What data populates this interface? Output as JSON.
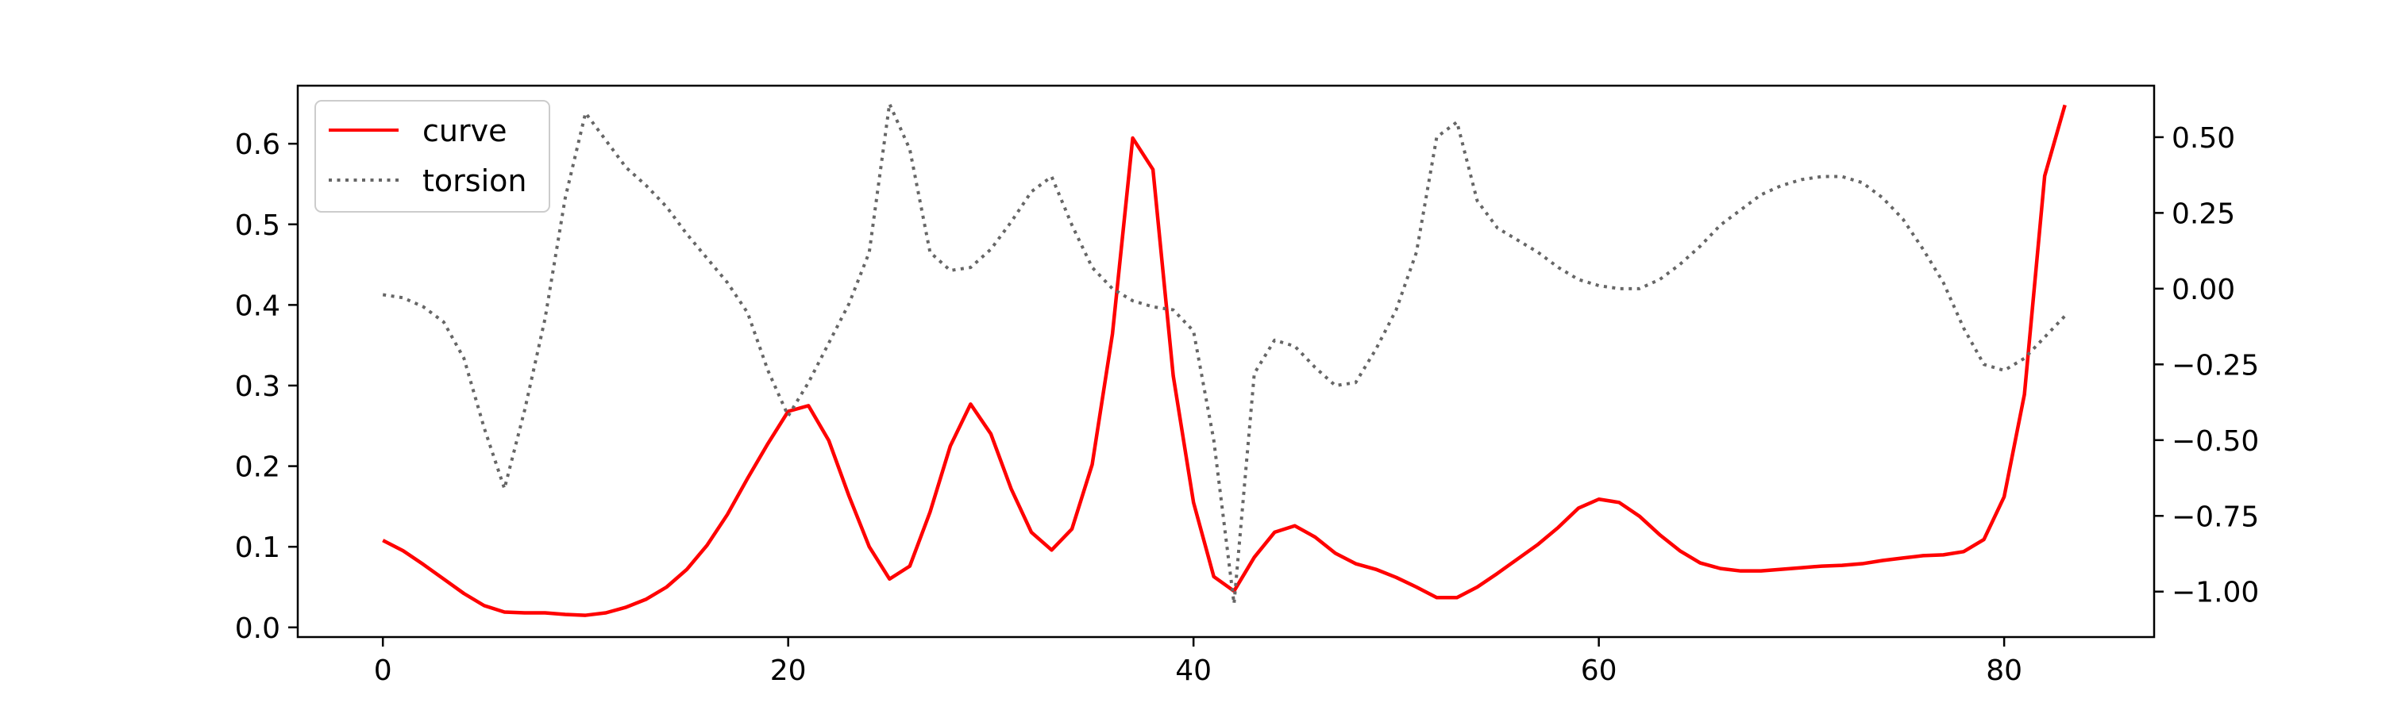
{
  "chart_data": {
    "type": "line",
    "title": "",
    "xlabel": "",
    "ylabel": "",
    "y2label": "",
    "xlim": [
      -4.2,
      87.4
    ],
    "ylim": [
      -0.012,
      0.672
    ],
    "y2lim": [
      -1.15,
      0.67
    ],
    "x_ticks": [
      0,
      20,
      40,
      60,
      80
    ],
    "y_ticks": [
      0.0,
      0.1,
      0.2,
      0.3,
      0.4,
      0.5,
      0.6
    ],
    "y2_ticks": [
      -1.0,
      -0.75,
      -0.5,
      -0.25,
      0.0,
      0.25,
      0.5
    ],
    "grid": false,
    "legend_position": "top-left",
    "x": [
      0,
      1,
      2,
      3,
      4,
      5,
      6,
      7,
      8,
      9,
      10,
      11,
      12,
      13,
      14,
      15,
      16,
      17,
      18,
      19,
      20,
      21,
      22,
      23,
      24,
      25,
      26,
      27,
      28,
      29,
      30,
      31,
      32,
      33,
      34,
      35,
      36,
      37,
      38,
      39,
      40,
      41,
      42,
      43,
      44,
      45,
      46,
      47,
      48,
      49,
      50,
      51,
      52,
      53,
      54,
      55,
      56,
      57,
      58,
      59,
      60,
      61,
      62,
      63,
      64,
      65,
      66,
      67,
      68,
      69,
      70,
      71,
      72,
      73,
      74,
      75,
      76,
      77,
      78,
      79,
      80,
      81,
      82,
      83
    ],
    "series": [
      {
        "name": "curve",
        "axis": "left",
        "color": "#ff0000",
        "style": "solid",
        "values": [
          0.108,
          0.095,
          0.078,
          0.06,
          0.042,
          0.027,
          0.019,
          0.018,
          0.018,
          0.016,
          0.015,
          0.018,
          0.025,
          0.035,
          0.05,
          0.072,
          0.102,
          0.14,
          0.185,
          0.228,
          0.268,
          0.275,
          0.232,
          0.163,
          0.1,
          0.06,
          0.076,
          0.143,
          0.225,
          0.277,
          0.24,
          0.172,
          0.118,
          0.096,
          0.122,
          0.202,
          0.364,
          0.607,
          0.568,
          0.312,
          0.155,
          0.063,
          0.045,
          0.087,
          0.118,
          0.126,
          0.112,
          0.092,
          0.079,
          0.072,
          0.062,
          0.05,
          0.037,
          0.037,
          0.05,
          0.067,
          0.085,
          0.103,
          0.124,
          0.148,
          0.159,
          0.155,
          0.138,
          0.115,
          0.095,
          0.08,
          0.073,
          0.07,
          0.07,
          0.072,
          0.074,
          0.076,
          0.077,
          0.079,
          0.083,
          0.086,
          0.089,
          0.09,
          0.094,
          0.109,
          0.162,
          0.289,
          0.56,
          0.648
        ]
      },
      {
        "name": "torsion",
        "axis": "right",
        "color": "#666666",
        "style": "dotted",
        "values": [
          -0.02,
          -0.03,
          -0.06,
          -0.11,
          -0.23,
          -0.46,
          -0.66,
          -0.4,
          -0.1,
          0.3,
          0.58,
          0.49,
          0.4,
          0.34,
          0.27,
          0.18,
          0.1,
          0.02,
          -0.08,
          -0.27,
          -0.42,
          -0.31,
          -0.18,
          -0.05,
          0.12,
          0.61,
          0.46,
          0.12,
          0.06,
          0.07,
          0.13,
          0.22,
          0.32,
          0.37,
          0.21,
          0.07,
          0.0,
          -0.04,
          -0.06,
          -0.07,
          -0.14,
          -0.5,
          -1.04,
          -0.28,
          -0.17,
          -0.19,
          -0.26,
          -0.32,
          -0.31,
          -0.2,
          -0.07,
          0.12,
          0.5,
          0.55,
          0.29,
          0.2,
          0.16,
          0.12,
          0.07,
          0.03,
          0.01,
          0.0,
          0.0,
          0.03,
          0.08,
          0.14,
          0.21,
          0.26,
          0.31,
          0.34,
          0.36,
          0.37,
          0.37,
          0.35,
          0.3,
          0.23,
          0.13,
          0.02,
          -0.13,
          -0.25,
          -0.27,
          -0.23,
          -0.16,
          -0.09
        ]
      }
    ]
  }
}
